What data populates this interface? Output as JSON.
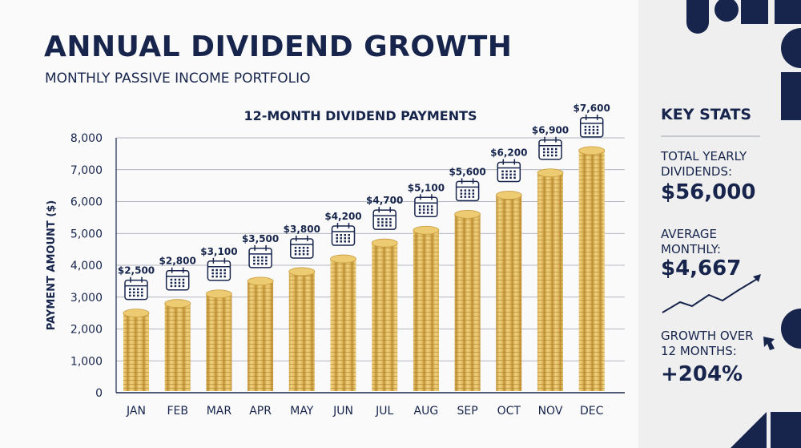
{
  "header": {
    "title": "ANNUAL DIVIDEND GROWTH",
    "subtitle": "MONTHLY PASSIVE INCOME PORTFOLIO"
  },
  "chart_data": {
    "type": "bar",
    "title": "12-MONTH DIVIDEND PAYMENTS",
    "xlabel": "",
    "ylabel": "PAYMENT AMOUNT ($)",
    "ylim": [
      0,
      8000
    ],
    "yticks": [
      0,
      1000,
      2000,
      3000,
      4000,
      5000,
      6000,
      7000,
      8000
    ],
    "ytick_labels": [
      "0",
      "1,000",
      "2,000",
      "3,000",
      "4,000",
      "5,000",
      "6,000",
      "7,000",
      "8,000"
    ],
    "grid": true,
    "categories": [
      "JAN",
      "FEB",
      "MAR",
      "APR",
      "MAY",
      "JUN",
      "JUL",
      "AUG",
      "SEP",
      "OCT",
      "NOV",
      "DEC"
    ],
    "values": [
      2500,
      2800,
      3100,
      3500,
      3800,
      4200,
      4700,
      5100,
      5600,
      6200,
      6900,
      7600
    ],
    "data_labels": [
      "$2,500",
      "$2,800",
      "$3,100",
      "$3,500",
      "$3,800",
      "$4,200",
      "$4,700",
      "$5,100",
      "$5,600",
      "$6,200",
      "$6,900",
      "$7,600"
    ],
    "bar_color": "#e3bd63"
  },
  "stats": {
    "heading": "KEY STATS",
    "total_label": "TOTAL YEARLY DIVIDENDS:",
    "total_value": "$56,000",
    "avg_label": "AVERAGE MONTHLY:",
    "avg_value": "$4,667",
    "growth_label": "GROWTH OVER 12 MONTHS:",
    "growth_value": "+204%"
  },
  "colors": {
    "navy": "#17254d",
    "gold": "#e3bd63",
    "panel": "#efefef"
  }
}
